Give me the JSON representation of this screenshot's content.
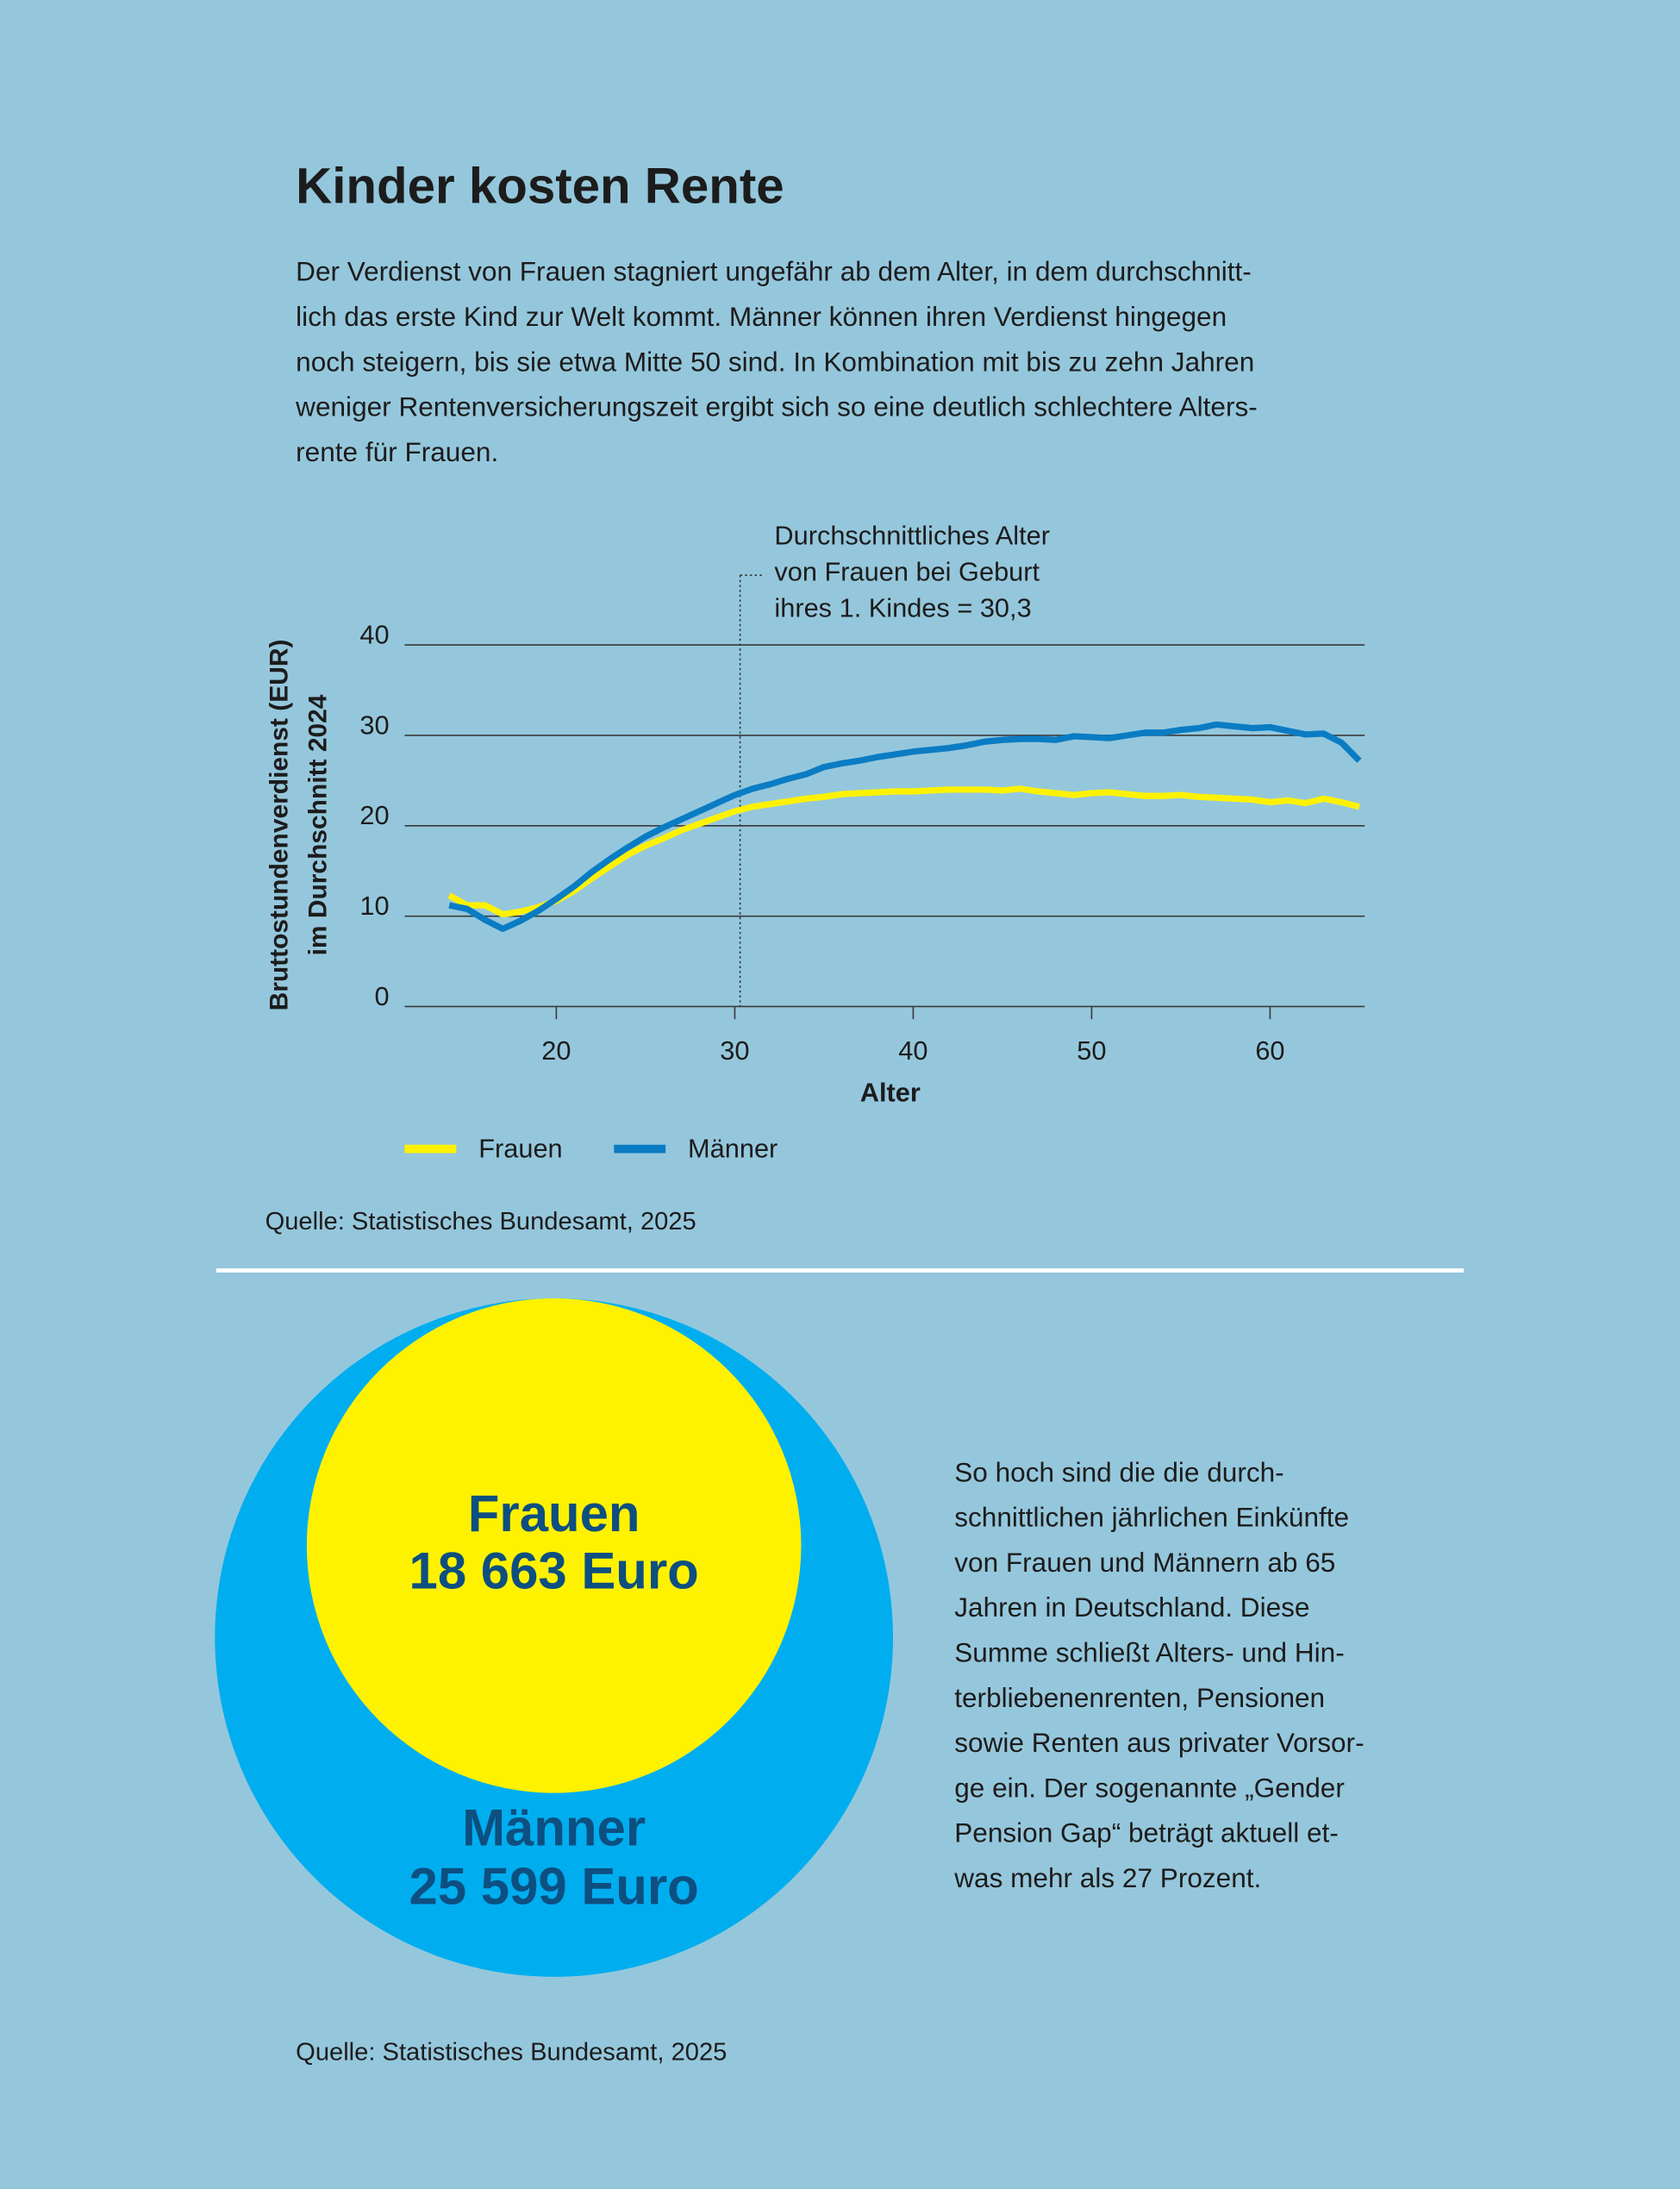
{
  "header": {
    "title": "Kinder kosten Rente",
    "intro": [
      "Der Verdienst von Frauen stagniert ungefähr ab dem Alter, in dem durchschnitt-",
      "lich das erste Kind zur Welt kommt. Männer können ihren Verdienst hingegen",
      "noch steigern, bis sie etwa Mitte 50 sind. In Kombination mit bis zu zehn Jahren",
      "weniger Rentenversicherungszeit ergibt sich so eine deutlich schlechtere Alters-",
      "rente für Frauen."
    ]
  },
  "chart_data": [
    {
      "type": "line",
      "x_label": "Alter",
      "y_label": [
        "Bruttostundenverdienst (EUR)",
        "im Durchschnitt 2024"
      ],
      "annotation": {
        "x": 30.3,
        "lines": [
          "Durchschnittliches Alter",
          "von Frauen bei Geburt",
          "ihres 1. Kindes = 30,3"
        ]
      },
      "x": [
        14,
        15,
        16,
        17,
        18,
        19,
        20,
        21,
        22,
        23,
        24,
        25,
        26,
        27,
        28,
        29,
        30,
        31,
        32,
        33,
        34,
        35,
        36,
        37,
        38,
        39,
        40,
        41,
        42,
        43,
        44,
        45,
        46,
        47,
        48,
        49,
        50,
        51,
        52,
        53,
        54,
        55,
        56,
        57,
        58,
        59,
        60,
        61,
        62,
        63,
        64,
        65
      ],
      "series": [
        {
          "name": "Frauen",
          "color": "#fff200",
          "values": [
            12.3,
            11.2,
            11.2,
            10.2,
            10.5,
            11.0,
            11.7,
            12.8,
            14.2,
            15.5,
            16.8,
            17.8,
            18.6,
            19.5,
            20.2,
            20.9,
            21.6,
            22.1,
            22.4,
            22.7,
            23.0,
            23.2,
            23.5,
            23.6,
            23.7,
            23.8,
            23.8,
            23.9,
            24.0,
            24.0,
            24.0,
            23.9,
            24.1,
            23.8,
            23.6,
            23.4,
            23.6,
            23.7,
            23.5,
            23.3,
            23.3,
            23.4,
            23.2,
            23.1,
            23.0,
            22.9,
            22.6,
            22.8,
            22.5,
            23.0,
            22.6,
            22.1
          ]
        },
        {
          "name": "Männer",
          "color": "#0a7cc4",
          "values": [
            11.2,
            10.8,
            9.6,
            8.6,
            9.5,
            10.6,
            11.9,
            13.3,
            14.9,
            16.3,
            17.6,
            18.8,
            19.8,
            20.7,
            21.6,
            22.5,
            23.4,
            24.1,
            24.6,
            25.2,
            25.7,
            26.5,
            26.9,
            27.2,
            27.6,
            27.9,
            28.2,
            28.4,
            28.6,
            28.9,
            29.3,
            29.5,
            29.6,
            29.6,
            29.5,
            29.9,
            29.8,
            29.7,
            30.0,
            30.3,
            30.3,
            30.6,
            30.8,
            31.2,
            31.0,
            30.8,
            30.9,
            30.5,
            30.1,
            30.2,
            29.2,
            27.2
          ]
        }
      ],
      "xlim": [
        11.5,
        65.3
      ],
      "ylim": [
        0,
        40
      ],
      "xticks": [
        20,
        30,
        40,
        50,
        60
      ],
      "yticks": [
        0,
        10,
        20,
        30,
        40
      ],
      "grid": true,
      "source": "Quelle: Statistisches Bundesamt, 2025"
    },
    {
      "type": "circles",
      "categories": [
        "Frauen",
        "Männer"
      ],
      "values": [
        18663,
        25599
      ],
      "value_labels": [
        "18 663 Euro",
        "25 599 Euro"
      ],
      "colors": [
        "#fff200",
        "#00aeef"
      ],
      "description": [
        "So hoch sind die die durch-",
        "schnittlichen jährlichen Einkünfte",
        "von Frauen und Männern ab 65",
        "Jahren in Deutschland. Diese",
        "Summe schließt Alters- und Hin-",
        "terbliebenenrenten, Pensionen",
        "sowie Renten aus privater Vorsor-",
        "ge ein. Der sogenannte „Gender",
        "Pension Gap“ beträgt aktuell et-",
        "was mehr als 27 Prozent."
      ],
      "source": "Quelle: Statistisches Bundesamt, 2025"
    }
  ]
}
